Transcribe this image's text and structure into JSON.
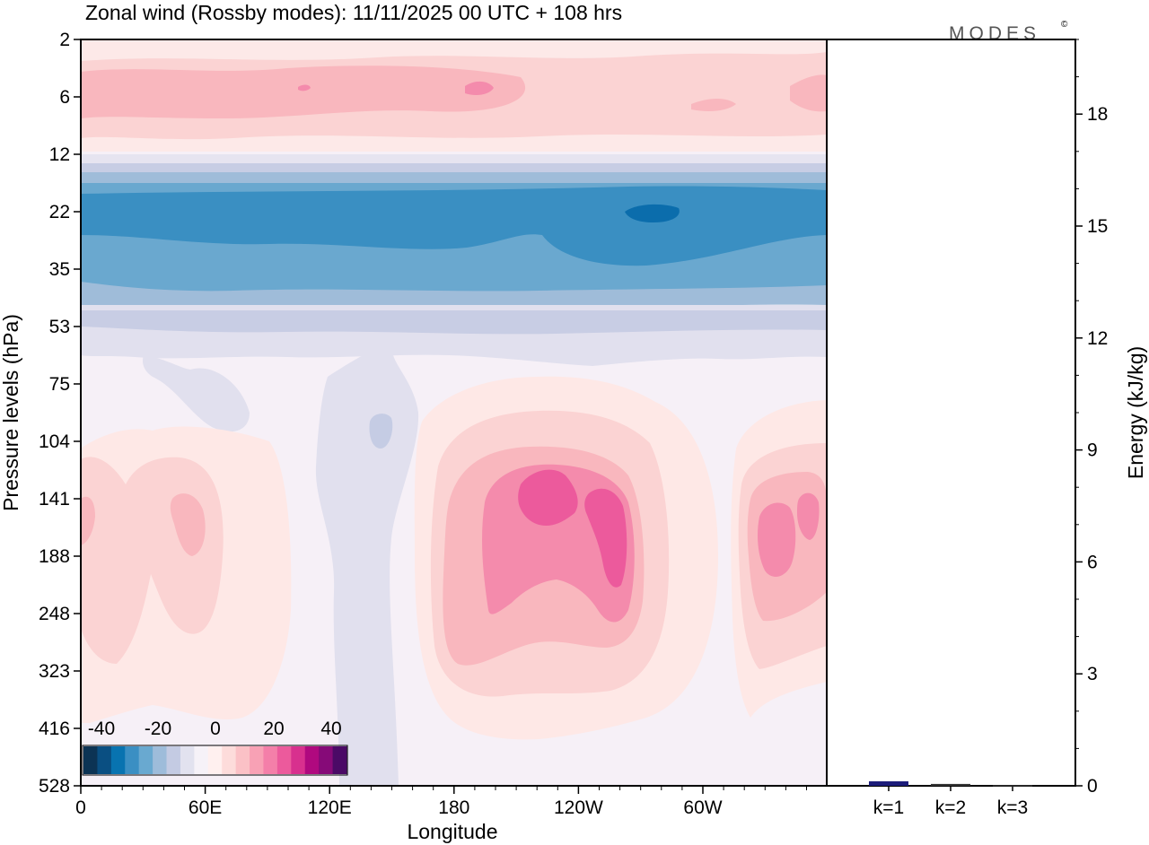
{
  "title": "Zonal wind (Rossby modes):  11/11/2025  00 UTC  + 108 hrs",
  "logo": "MODES",
  "logo_mark": "©",
  "chart_data": [
    {
      "type": "heatmap",
      "title": "Zonal wind (Rossby modes):  11/11/2025  00 UTC  + 108 hrs",
      "xlabel": "Longitude",
      "ylabel": "Pressure levels (hPa)",
      "x_ticks": [
        "0",
        "60E",
        "120E",
        "180",
        "120W",
        "60W"
      ],
      "y_ticks": [
        "2",
        "6",
        "12",
        "22",
        "35",
        "53",
        "75",
        "104",
        "141",
        "188",
        "248",
        "323",
        "416",
        "528"
      ],
      "colorbar": {
        "ticks": [
          "-40",
          "-20",
          "0",
          "20",
          "40"
        ],
        "levels": [
          -45,
          -40,
          -35,
          -30,
          -25,
          -20,
          -15,
          -10,
          -5,
          0,
          5,
          10,
          15,
          20,
          25,
          30,
          35,
          40,
          45
        ],
        "colors": [
          "#0c3354",
          "#0a4f82",
          "#0873b0",
          "#3b8fc3",
          "#69a9d0",
          "#9ebcda",
          "#c4cbe3",
          "#e2e2ef",
          "#f6f2f8",
          "#fff0ef",
          "#fddcdb",
          "#fbc1c6",
          "#f8a1b5",
          "#f47fa9",
          "#ec5a9c",
          "#d8308e",
          "#b0097f",
          "#860a78",
          "#4b0a66"
        ]
      },
      "description_levels": "contour bands of zonal wind in m/s"
    },
    {
      "type": "bar",
      "categories": [
        "k=1",
        "k=2",
        "k=3"
      ],
      "values": [
        0.12,
        0.05,
        0.02
      ],
      "ylabel": "Energy (kJ/kg)",
      "ylim": [
        0,
        20
      ],
      "y_ticks": [
        "0",
        "3",
        "6",
        "9",
        "12",
        "15",
        "18"
      ],
      "y_tick_values": [
        0,
        3,
        6,
        9,
        12,
        15,
        18
      ]
    }
  ]
}
